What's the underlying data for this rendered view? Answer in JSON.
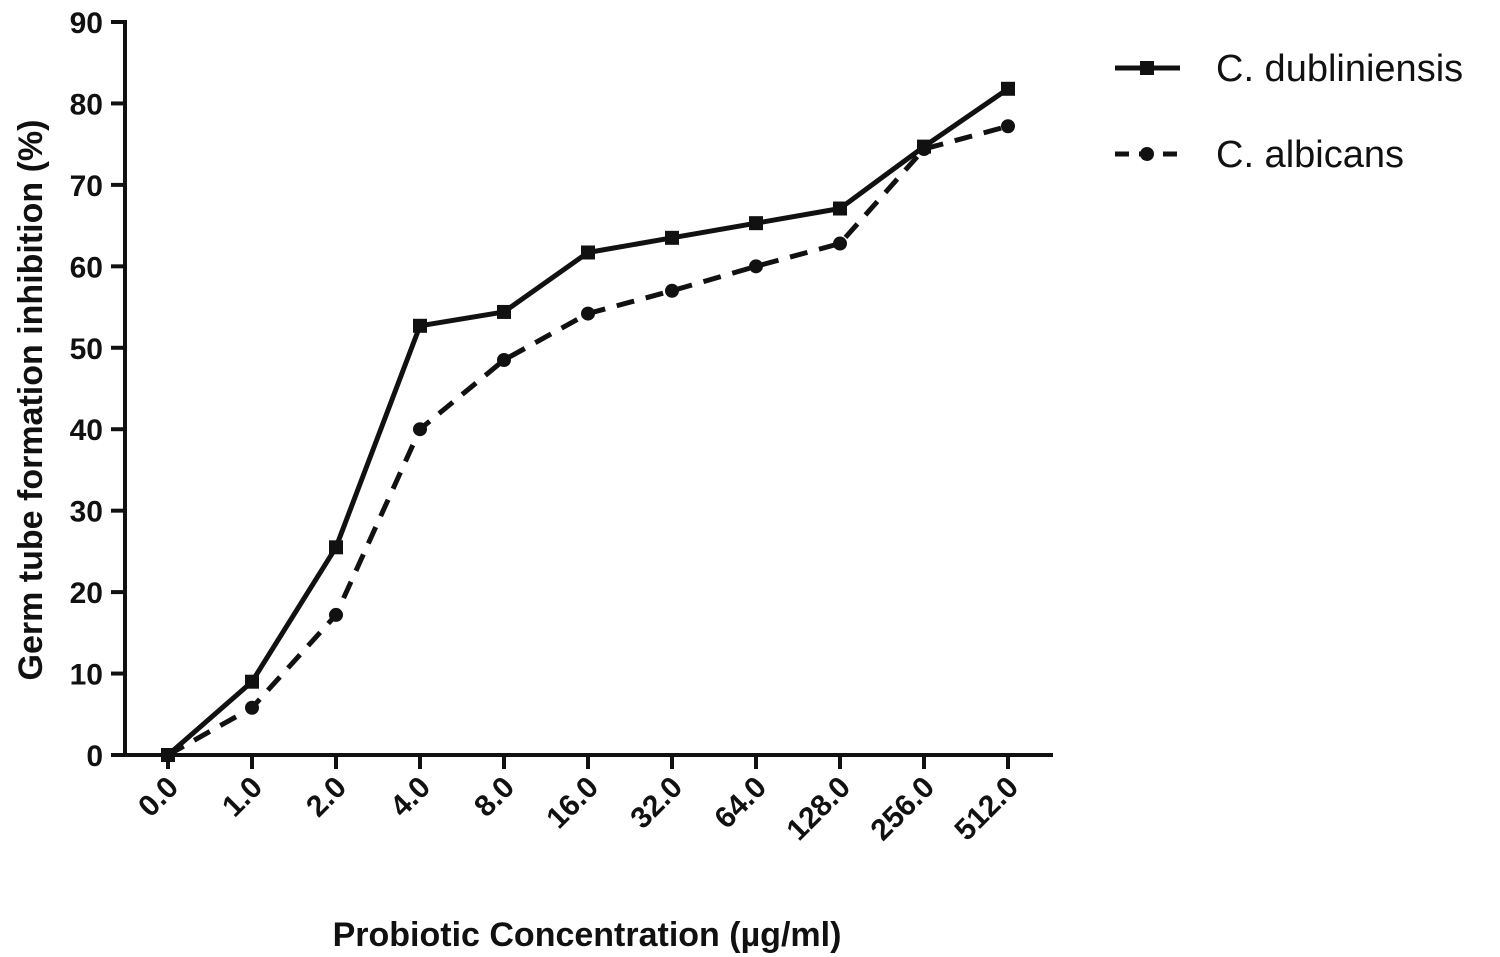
{
  "chart_data": {
    "type": "line",
    "title": "",
    "xlabel": "Probiotic Concentration (µg/ml)",
    "ylabel": "Germ tube formation inhibition (%)",
    "categories": [
      "0.0",
      "1.0",
      "2.0",
      "4.0",
      "8.0",
      "16.0",
      "32.0",
      "64.0",
      "128.0",
      "256.0",
      "512.0"
    ],
    "ylim": [
      0,
      90
    ],
    "yticks": [
      0,
      10,
      20,
      30,
      40,
      50,
      60,
      70,
      80,
      90
    ],
    "grid": false,
    "legend_position": "top-right",
    "series": [
      {
        "name": "C. dubliniensis",
        "marker": "square",
        "line_style": "solid",
        "color": "#111111",
        "values": [
          0,
          9,
          25.5,
          52.7,
          54.4,
          61.7,
          63.5,
          65.3,
          67.1,
          74.7,
          81.8
        ]
      },
      {
        "name": "C. albicans",
        "marker": "circle",
        "line_style": "dashed",
        "color": "#111111",
        "values": [
          0,
          5.8,
          17.2,
          40,
          48.5,
          54.2,
          57,
          60,
          62.8,
          74.4,
          77.2
        ]
      }
    ]
  }
}
